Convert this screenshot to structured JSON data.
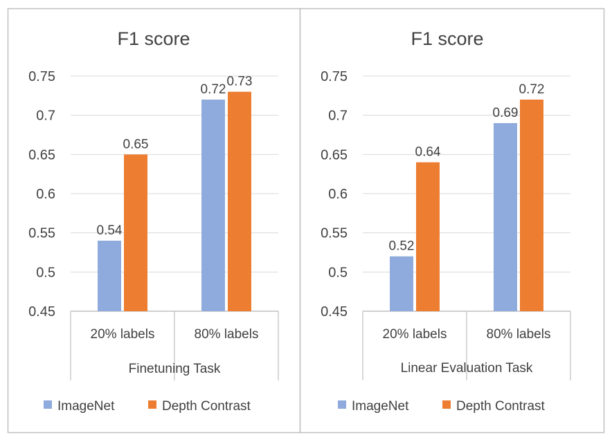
{
  "colors": {
    "imagenet": "#8faadc",
    "depth_contrast": "#ed7d31",
    "grid": "#d9d9d9",
    "axis": "#bfbfbf",
    "text": "#404040",
    "panel_border": "#bfbfbf"
  },
  "chart_data": [
    {
      "type": "bar",
      "title": "F1 score",
      "xlabel": "Finetuning Task",
      "ylabel": "",
      "categories": [
        "20% labels",
        "80% labels"
      ],
      "series": [
        {
          "name": "ImageNet",
          "values": [
            0.54,
            0.72
          ]
        },
        {
          "name": "Depth Contrast",
          "values": [
            0.65,
            0.73
          ]
        }
      ],
      "data_labels": [
        [
          "0.54",
          "0.72"
        ],
        [
          "0.65",
          "0.73"
        ]
      ],
      "ylim": [
        0.45,
        0.75
      ],
      "yticks": [
        0.45,
        0.5,
        0.55,
        0.6,
        0.65,
        0.7,
        0.75
      ],
      "ytick_labels": [
        "0.45",
        "0.5",
        "0.55",
        "0.6",
        "0.65",
        "0.7",
        "0.75"
      ],
      "grid": true,
      "legend_position": "bottom"
    },
    {
      "type": "bar",
      "title": "F1 score",
      "xlabel": "Linear Evaluation Task",
      "ylabel": "",
      "categories": [
        "20% labels",
        "80% labels"
      ],
      "series": [
        {
          "name": "ImageNet",
          "values": [
            0.52,
            0.69
          ]
        },
        {
          "name": "Depth Contrast",
          "values": [
            0.64,
            0.72
          ]
        }
      ],
      "data_labels": [
        [
          "0.52",
          "0.69"
        ],
        [
          "0.64",
          "0.72"
        ]
      ],
      "ylim": [
        0.45,
        0.75
      ],
      "yticks": [
        0.45,
        0.5,
        0.55,
        0.6,
        0.65,
        0.7,
        0.75
      ],
      "ytick_labels": [
        "0.45",
        "0.5",
        "0.55",
        "0.6",
        "0.65",
        "0.7",
        "0.75"
      ],
      "grid": true,
      "legend_position": "bottom"
    }
  ]
}
